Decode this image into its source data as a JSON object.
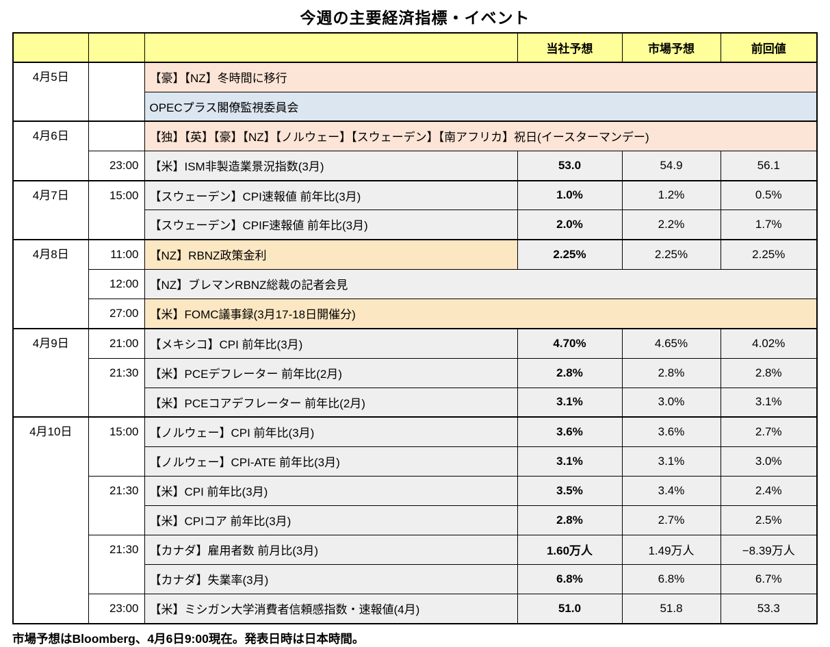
{
  "title": "今週の主要経済指標・イベント",
  "footnote": "市場予想はBloomberg、4月6日9:00現在。発表日時は日本時間。",
  "colors": {
    "header_bg": "#FFFF99",
    "peach": "#FCE4D6",
    "blue": "#DCE6F1",
    "cream": "#FBE7C2",
    "gray": "#EFEFEF"
  },
  "table": {
    "headers": {
      "date": "",
      "time": "",
      "event": "",
      "company_forecast": "当社予想",
      "market_forecast": "市場予想",
      "previous_value": "前回値"
    },
    "groups": [
      {
        "date": "4月5日",
        "rows": [
          {
            "time": "",
            "time_rowspan": 2,
            "event": "【豪】【NZ】冬時間に移行",
            "style": "peach",
            "full_span": true
          },
          {
            "event": "OPECプラス閣僚監視委員会",
            "style": "blue",
            "full_span": true
          }
        ]
      },
      {
        "date": "4月6日",
        "rows": [
          {
            "time": "",
            "time_rowspan": 1,
            "event": "【独】【英】【豪】【NZ】【ノルウェー】【スウェーデン】【南アフリカ】祝日(イースターマンデー)",
            "style": "peach",
            "full_span": true
          },
          {
            "time": "23:00",
            "time_rowspan": 1,
            "event": "【米】ISM非製造業景況指数(3月)",
            "style": "gray",
            "values": [
              "53.0",
              "54.9",
              "56.1"
            ]
          }
        ]
      },
      {
        "date": "4月7日",
        "rows": [
          {
            "time": "15:00",
            "time_rowspan": 2,
            "event": "【スウェーデン】CPI速報値 前年比(3月)",
            "style": "gray",
            "values": [
              "1.0%",
              "1.2%",
              "0.5%"
            ]
          },
          {
            "event": "【スウェーデン】CPIF速報値 前年比(3月)",
            "style": "gray",
            "values": [
              "2.0%",
              "2.2%",
              "1.7%"
            ]
          }
        ]
      },
      {
        "date": "4月8日",
        "rows": [
          {
            "time": "11:00",
            "time_rowspan": 1,
            "event": "【NZ】RBNZ政策金利",
            "style": "cream",
            "values": [
              "2.25%",
              "2.25%",
              "2.25%"
            ]
          },
          {
            "time": "12:00",
            "time_rowspan": 1,
            "event": "【NZ】ブレマンRBNZ総裁の記者会見",
            "style": "gray",
            "full_span": true
          },
          {
            "time": "27:00",
            "time_rowspan": 1,
            "event": "【米】FOMC議事録(3月17-18日開催分)",
            "style": "cream",
            "full_span": true
          }
        ]
      },
      {
        "date": "4月9日",
        "rows": [
          {
            "time": "21:00",
            "time_rowspan": 1,
            "event": "【メキシコ】CPI 前年比(3月)",
            "style": "gray",
            "values": [
              "4.70%",
              "4.65%",
              "4.02%"
            ]
          },
          {
            "time": "21:30",
            "time_rowspan": 2,
            "event": "【米】PCEデフレーター 前年比(2月)",
            "style": "gray",
            "values": [
              "2.8%",
              "2.8%",
              "2.8%"
            ]
          },
          {
            "event": "【米】PCEコアデフレーター 前年比(2月)",
            "style": "gray",
            "values": [
              "3.1%",
              "3.0%",
              "3.1%"
            ]
          }
        ]
      },
      {
        "date": "4月10日",
        "rows": [
          {
            "time": "15:00",
            "time_rowspan": 2,
            "event": "【ノルウェー】CPI 前年比(3月)",
            "style": "gray",
            "values": [
              "3.6%",
              "3.6%",
              "2.7%"
            ]
          },
          {
            "event": "【ノルウェー】CPI-ATE 前年比(3月)",
            "style": "gray",
            "values": [
              "3.1%",
              "3.1%",
              "3.0%"
            ]
          },
          {
            "time": "21:30",
            "time_rowspan": 2,
            "event": "【米】CPI 前年比(3月)",
            "style": "gray",
            "values": [
              "3.5%",
              "3.4%",
              "2.4%"
            ]
          },
          {
            "event": "【米】CPIコア 前年比(3月)",
            "style": "gray",
            "values": [
              "2.8%",
              "2.7%",
              "2.5%"
            ]
          },
          {
            "time": "21:30",
            "time_rowspan": 2,
            "event": "【カナダ】雇用者数 前月比(3月)",
            "style": "gray",
            "values": [
              "1.60万人",
              "1.49万人",
              "−8.39万人"
            ]
          },
          {
            "event": "【カナダ】失業率(3月)",
            "style": "gray",
            "values": [
              "6.8%",
              "6.8%",
              "6.7%"
            ]
          },
          {
            "time": "23:00",
            "time_rowspan": 1,
            "event": "【米】ミシガン大学消費者信頼感指数・速報値(4月)",
            "style": "gray",
            "values": [
              "51.0",
              "51.8",
              "53.3"
            ]
          }
        ]
      }
    ]
  }
}
